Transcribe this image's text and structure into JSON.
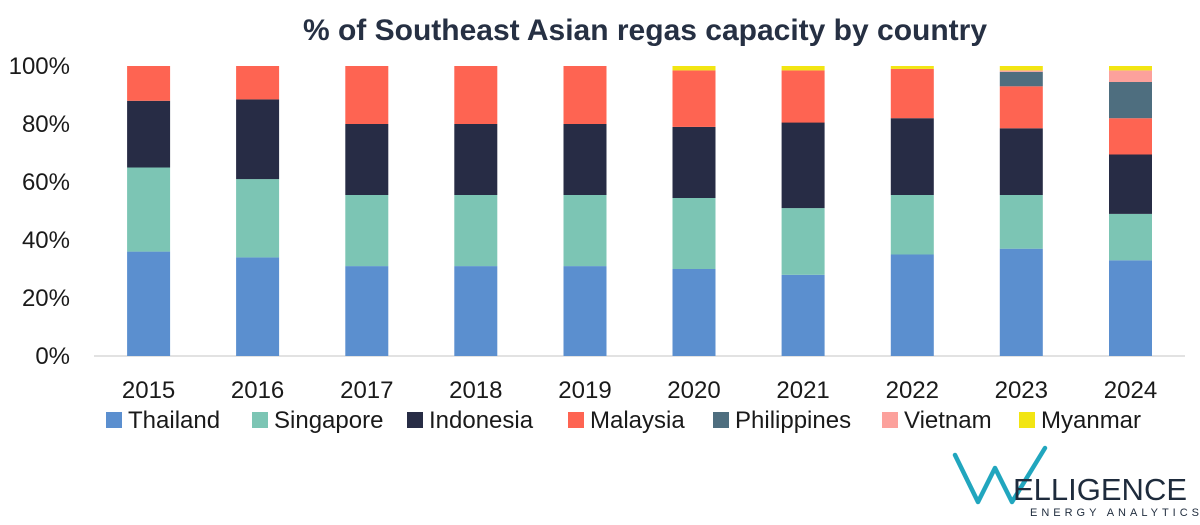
{
  "chart_data": {
    "type": "bar",
    "stacked": true,
    "title": "% of Southeast Asian regas capacity by country",
    "categories": [
      "2015",
      "2016",
      "2017",
      "2018",
      "2019",
      "2020",
      "2021",
      "2022",
      "2023",
      "2024"
    ],
    "ylim": [
      0,
      100
    ],
    "yticks": [
      "0%",
      "20%",
      "40%",
      "60%",
      "80%",
      "100%"
    ],
    "grid": false,
    "legend": "bottom",
    "series": [
      {
        "name": "Thailand",
        "color": "#5b8fcf",
        "values": [
          36,
          34,
          31,
          31,
          31,
          30,
          28,
          35,
          37,
          33
        ]
      },
      {
        "name": "Singapore",
        "color": "#7cc5b4",
        "values": [
          29,
          27,
          24.5,
          24.5,
          24.5,
          24.5,
          23,
          20.5,
          18.5,
          16
        ]
      },
      {
        "name": "Indonesia",
        "color": "#272c45",
        "values": [
          23,
          27.5,
          24.5,
          24.5,
          24.5,
          24.5,
          29.5,
          26.5,
          23,
          20.5
        ]
      },
      {
        "name": "Malaysia",
        "color": "#fe6452",
        "values": [
          12,
          11.5,
          20,
          20,
          20,
          19.5,
          18,
          17,
          14.5,
          12.5
        ]
      },
      {
        "name": "Philippines",
        "color": "#4e6e7f",
        "values": [
          0,
          0,
          0,
          0,
          0,
          0,
          0,
          0,
          5,
          12.5
        ]
      },
      {
        "name": "Vietnam",
        "color": "#fca19c",
        "values": [
          0,
          0,
          0,
          0,
          0,
          0,
          0,
          0,
          0.5,
          4
        ]
      },
      {
        "name": "Myanmar",
        "color": "#f2e512",
        "values": [
          0,
          0,
          0,
          0,
          0,
          1.5,
          1.5,
          1,
          1.5,
          1.5
        ]
      }
    ]
  },
  "logo": {
    "text": "ELLIGENCE",
    "tagline": "ENERGY ANALYTICS",
    "accent": "#21a6be",
    "dark": "#1e2b3c"
  }
}
